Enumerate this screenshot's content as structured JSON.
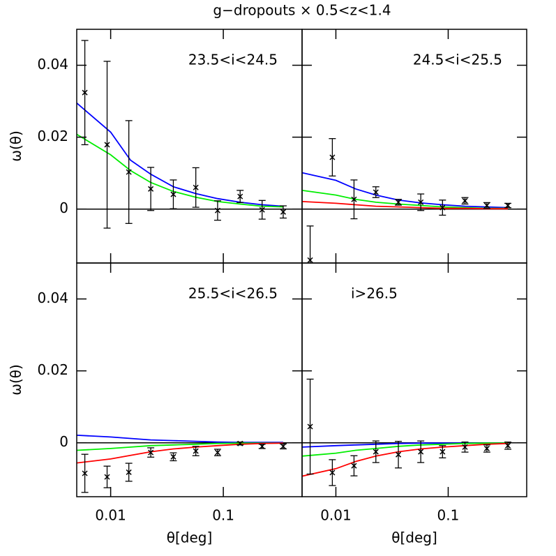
{
  "chart_data": [
    {
      "type": "scatter",
      "title": "g−dropouts × 0.5<z<1.4",
      "ylabel": "ω(θ)",
      "annotation": "23.5<i<24.5",
      "xlim": [
        0.005,
        0.5
      ],
      "ylim": [
        -0.015,
        0.05
      ],
      "xticks": [
        0.01,
        0.1
      ],
      "yticks": [
        0,
        0.02,
        0.04
      ],
      "log_x": true,
      "zero_line": true,
      "show_xtick_labels": false,
      "show_ytick_labels": true,
      "color": "#000000",
      "x": [
        0.0059,
        0.0093,
        0.0145,
        0.0227,
        0.036,
        0.057,
        0.089,
        0.141,
        0.221,
        0.34
      ],
      "values": [
        0.0324,
        0.0179,
        0.0103,
        0.0056,
        0.0041,
        0.006,
        -0.0004,
        0.0035,
        -0.0002,
        -0.0008
      ],
      "errors": [
        0.0145,
        0.0232,
        0.0143,
        0.006,
        0.004,
        0.0055,
        0.0027,
        0.0017,
        0.0026,
        0.0017
      ],
      "model_x": [
        0.005,
        0.01,
        0.015,
        0.0227,
        0.036,
        0.057,
        0.089,
        0.141,
        0.221,
        0.34
      ],
      "models": [
        {
          "color": "#0000ff",
          "values": [
            0.0295,
            0.0214,
            0.0136,
            0.0097,
            0.0062,
            0.0043,
            0.0029,
            0.0019,
            0.0012,
            0.0008
          ]
        },
        {
          "color": "#00ee00",
          "values": [
            0.0208,
            0.0151,
            0.0107,
            0.0074,
            0.0049,
            0.0033,
            0.0021,
            0.0014,
            0.0008,
            0.0006
          ]
        }
      ]
    },
    {
      "type": "scatter",
      "annotation": "24.5<i<25.5",
      "xlim": [
        0.005,
        0.5
      ],
      "ylim": [
        -0.015,
        0.05
      ],
      "xticks": [
        0.01,
        0.1
      ],
      "yticks": [
        0,
        0.02,
        0.04
      ],
      "log_x": true,
      "zero_line": true,
      "show_xtick_labels": false,
      "show_ytick_labels": false,
      "color": "#000000",
      "x": [
        0.0059,
        0.0093,
        0.0145,
        0.0227,
        0.036,
        0.057,
        0.089,
        0.141,
        0.221,
        0.34
      ],
      "values": [
        -0.0142,
        0.0144,
        0.0027,
        0.0047,
        0.0019,
        0.0019,
        0.0004,
        0.0023,
        0.001,
        0.001
      ],
      "errors": [
        0.0095,
        0.0052,
        0.0054,
        0.0015,
        0.0008,
        0.0023,
        0.0021,
        0.0009,
        0.0008,
        0.0006
      ],
      "model_x": [
        0.005,
        0.01,
        0.015,
        0.0227,
        0.036,
        0.057,
        0.089,
        0.141,
        0.221,
        0.34
      ],
      "models": [
        {
          "color": "#0000ff",
          "values": [
            0.0101,
            0.008,
            0.0056,
            0.0039,
            0.0025,
            0.0017,
            0.0012,
            0.0008,
            0.0006,
            0.0004
          ]
        },
        {
          "color": "#00ee00",
          "values": [
            0.0052,
            0.0039,
            0.0027,
            0.0019,
            0.0014,
            0.001,
            0.0006,
            0.0004,
            0.0002,
            0.0002
          ]
        },
        {
          "color": "#ff0000",
          "values": [
            0.0021,
            0.0016,
            0.0012,
            0.0008,
            0.0006,
            0.0004,
            0.0002,
            0.0002,
            0.0001,
            0.0001
          ]
        }
      ]
    },
    {
      "type": "scatter",
      "ylabel": "ω(θ)",
      "xlabel": "θ[deg]",
      "annotation": "25.5<i<26.5",
      "xlim": [
        0.005,
        0.5
      ],
      "ylim": [
        -0.015,
        0.05
      ],
      "xticks": [
        0.01,
        0.1
      ],
      "yticks": [
        0,
        0.02,
        0.04
      ],
      "log_x": true,
      "zero_line": true,
      "show_xtick_labels": true,
      "show_ytick_labels": true,
      "color": "#000000",
      "x": [
        0.0059,
        0.0093,
        0.0145,
        0.0227,
        0.036,
        0.057,
        0.089,
        0.141,
        0.221,
        0.34
      ],
      "values": [
        -0.0085,
        -0.0095,
        -0.0082,
        -0.0027,
        -0.0039,
        -0.0023,
        -0.0027,
        -0.0002,
        -0.001,
        -0.001
      ],
      "errors": [
        0.0053,
        0.003,
        0.0025,
        0.0013,
        0.0011,
        0.0013,
        0.0009,
        0.0004,
        0.0006,
        0.0007
      ],
      "model_x": [
        0.005,
        0.01,
        0.015,
        0.0227,
        0.036,
        0.057,
        0.089,
        0.141,
        0.221,
        0.34
      ],
      "models": [
        {
          "color": "#0000ff",
          "values": [
            0.0021,
            0.0016,
            0.0012,
            0.0008,
            0.0006,
            0.0004,
            0.0002,
            0.0001,
            0.0001,
            0.0001
          ]
        },
        {
          "color": "#00ee00",
          "values": [
            -0.0021,
            -0.0016,
            -0.0012,
            -0.0008,
            -0.0006,
            -0.0004,
            -0.0002,
            -0.0001,
            -0.0001,
            -0.0001
          ]
        },
        {
          "color": "#ff0000",
          "values": [
            -0.0056,
            -0.0045,
            -0.0035,
            -0.0025,
            -0.0017,
            -0.0012,
            -0.0008,
            -0.0004,
            -0.0002,
            -0.0001
          ]
        }
      ]
    },
    {
      "type": "scatter",
      "xlabel": "θ[deg]",
      "annotation": "i>26.5",
      "xlim": [
        0.005,
        0.5
      ],
      "ylim": [
        -0.015,
        0.05
      ],
      "xticks": [
        0.01,
        0.1
      ],
      "yticks": [
        0,
        0.02,
        0.04
      ],
      "log_x": true,
      "zero_line": true,
      "show_xtick_labels": true,
      "show_ytick_labels": false,
      "color": "#000000",
      "x": [
        0.0059,
        0.0093,
        0.0145,
        0.0227,
        0.036,
        0.057,
        0.089,
        0.141,
        0.221,
        0.34
      ],
      "values": [
        0.0045,
        -0.0083,
        -0.0064,
        -0.0025,
        -0.0033,
        -0.0025,
        -0.0025,
        -0.0012,
        -0.0016,
        -0.0008
      ],
      "errors": [
        0.0132,
        0.0036,
        0.0028,
        0.003,
        0.0037,
        0.003,
        0.0017,
        0.0014,
        0.001,
        0.001
      ],
      "model_x": [
        0.005,
        0.01,
        0.015,
        0.0227,
        0.036,
        0.057,
        0.089,
        0.141,
        0.221,
        0.34
      ],
      "models": [
        {
          "color": "#0000ff",
          "values": [
            -0.0012,
            -0.0008,
            -0.0006,
            -0.0004,
            -0.0002,
            -0.0001,
            -0.0001,
            -0.0001,
            -0.0001,
            -0.0001
          ]
        },
        {
          "color": "#00ee00",
          "values": [
            -0.0037,
            -0.0029,
            -0.0021,
            -0.0016,
            -0.001,
            -0.0006,
            -0.0004,
            -0.0002,
            -0.0001,
            -0.0001
          ]
        },
        {
          "color": "#ff0000",
          "values": [
            -0.0093,
            -0.0072,
            -0.0052,
            -0.0037,
            -0.0025,
            -0.0017,
            -0.0012,
            -0.0008,
            -0.0004,
            -0.0002
          ]
        }
      ]
    }
  ]
}
